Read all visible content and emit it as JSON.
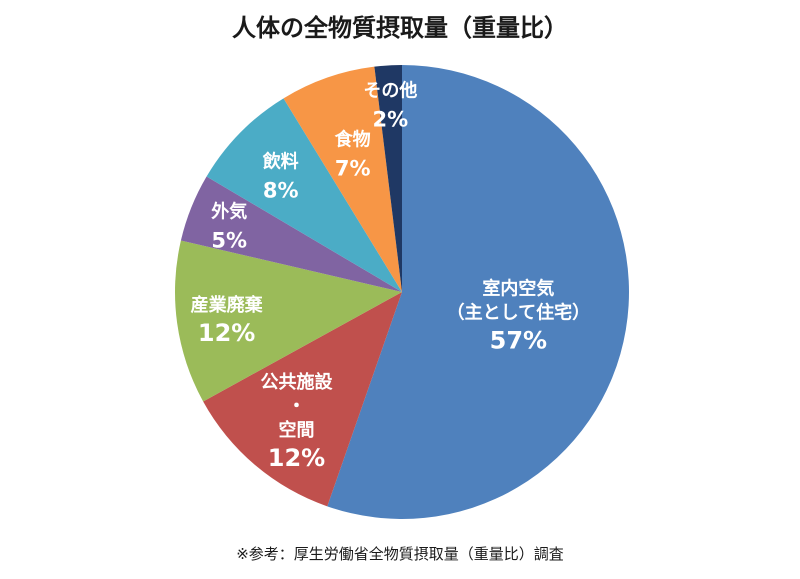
{
  "chart_data": {
    "type": "pie",
    "title": "人体の全物質摂取量（重量比）",
    "unit": "%",
    "start_angle_deg": 0,
    "direction": "clockwise",
    "slices": [
      {
        "label_lines": [
          "室内空気",
          "（主として住宅）"
        ],
        "value": 57,
        "value_label": "57%",
        "color": "#4f81bd"
      },
      {
        "label_lines": [
          "公共施設",
          "・",
          "空間"
        ],
        "value": 12,
        "value_label": "12%",
        "color": "#c0504d"
      },
      {
        "label_lines": [
          "産業廃棄"
        ],
        "value": 12,
        "value_label": "12%",
        "color": "#9bbb59"
      },
      {
        "label_lines": [
          "外気"
        ],
        "value": 5,
        "value_label": "5%",
        "color": "#8064a2"
      },
      {
        "label_lines": [
          "飲料"
        ],
        "value": 8,
        "value_label": "8%",
        "color": "#4bacc6"
      },
      {
        "label_lines": [
          "食物"
        ],
        "value": 7,
        "value_label": "7%",
        "color": "#f79646"
      },
      {
        "label_lines": [
          "その他"
        ],
        "value": 2,
        "value_label": "2%",
        "color": "#1f3864"
      }
    ]
  },
  "footnote": "※参考：厚生労働省全物質摂取量（重量比）調査"
}
